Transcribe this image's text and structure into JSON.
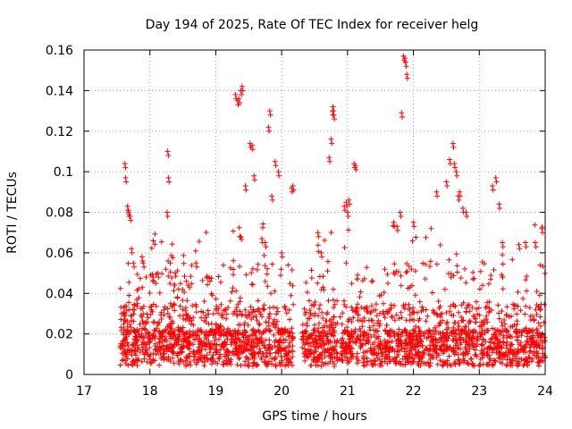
{
  "chart_data": {
    "type": "scatter",
    "title": "Day 194 of 2025, Rate Of TEC Index for receiver helg",
    "xlabel": "GPS time / hours",
    "ylabel": "ROTI / TECUs",
    "xlim": [
      17,
      24
    ],
    "ylim": [
      0,
      0.16
    ],
    "xticks": [
      "17",
      "18",
      "19",
      "20",
      "21",
      "22",
      "23",
      "24"
    ],
    "yticks": [
      "0",
      "0.02",
      "0.04",
      "0.06",
      "0.08",
      "0.1",
      "0.12",
      "0.14",
      "0.16"
    ],
    "grid": true,
    "marker": "+",
    "color": "#ff0000",
    "series": [
      {
        "name": "ROTI",
        "note": "Dense cloud of points from ~17.55 to 24 h (gap near 20.2-20.3 h); baseline mostly 0.005-0.03 TECU/s with spikes listed in x/y",
        "x": [
          17.62,
          17.63,
          17.66,
          17.67,
          17.68,
          17.7,
          17.72,
          17.75,
          17.88,
          17.9,
          18.05,
          18.12,
          18.27,
          18.28,
          18.26,
          18.7,
          18.9,
          19.3,
          19.33,
          19.35,
          19.38,
          19.4,
          19.45,
          19.52,
          19.55,
          19.58,
          19.7,
          19.75,
          19.8,
          19.82,
          19.85,
          19.9,
          19.95,
          20.0,
          20.15,
          20.17,
          20.55,
          20.6,
          20.72,
          20.75,
          20.77,
          20.78,
          20.79,
          20.95,
          20.98,
          21.0,
          21.02,
          21.1,
          21.12,
          21.7,
          21.75,
          21.8,
          21.82,
          21.85,
          21.87,
          21.88,
          21.9,
          22.0,
          22.35,
          22.5,
          22.55,
          22.6,
          22.62,
          22.65,
          22.68,
          22.7,
          22.75,
          22.8,
          23.2,
          23.25,
          23.3,
          23.35,
          23.6,
          23.7,
          23.85,
          23.95
        ],
        "y": [
          0.104,
          0.097,
          0.083,
          0.081,
          0.08,
          0.078,
          0.062,
          0.055,
          0.058,
          0.055,
          0.048,
          0.05,
          0.11,
          0.097,
          0.08,
          0.055,
          0.048,
          0.138,
          0.135,
          0.136,
          0.14,
          0.142,
          0.093,
          0.114,
          0.113,
          0.098,
          0.067,
          0.065,
          0.122,
          0.13,
          0.088,
          0.105,
          0.1,
          0.06,
          0.092,
          0.093,
          0.07,
          0.06,
          0.107,
          0.116,
          0.13,
          0.132,
          0.128,
          0.083,
          0.085,
          0.08,
          0.086,
          0.104,
          0.103,
          0.075,
          0.073,
          0.08,
          0.129,
          0.157,
          0.156,
          0.154,
          0.148,
          0.075,
          0.09,
          0.095,
          0.106,
          0.114,
          0.104,
          0.1,
          0.088,
          0.09,
          0.082,
          0.08,
          0.093,
          0.097,
          0.084,
          0.065,
          0.064,
          0.065,
          0.065,
          0.072
        ]
      }
    ]
  }
}
